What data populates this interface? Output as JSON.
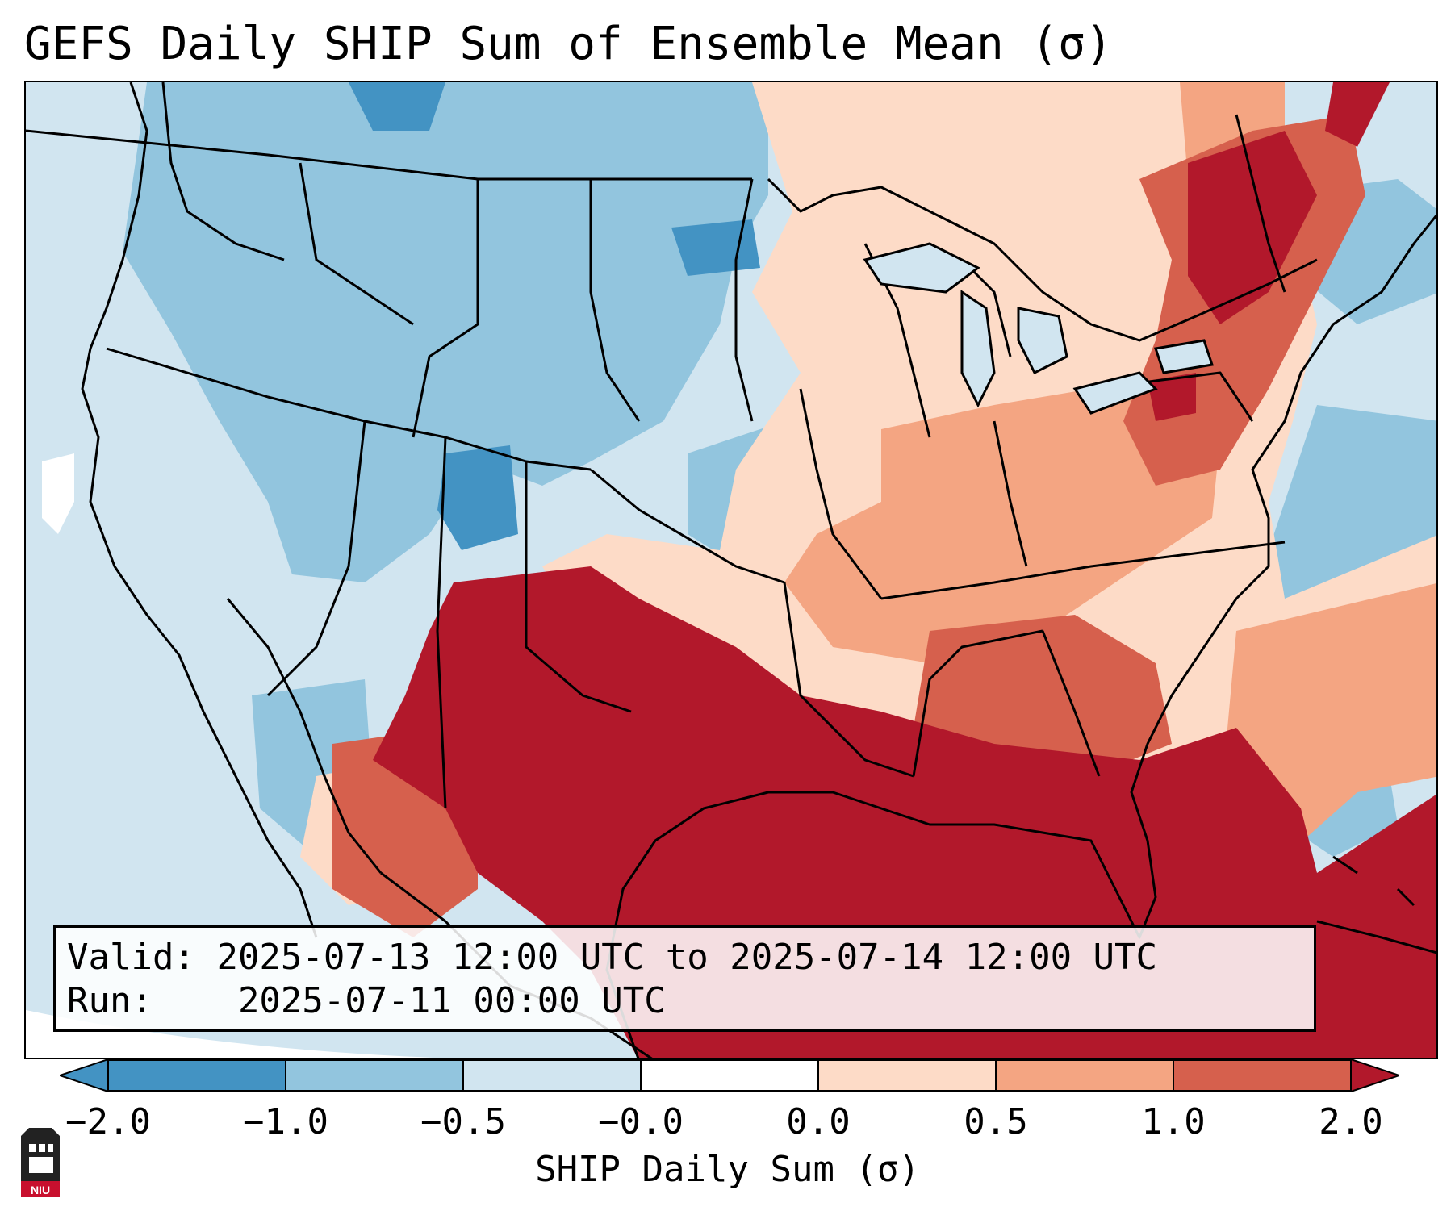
{
  "title": "GEFS Daily SHIP Sum of Ensemble Mean (σ)",
  "info": {
    "valid_label": "Valid:",
    "valid_value": "2025-07-13 12:00 UTC to 2025-07-14 12:00 UTC",
    "run_label": "Run:",
    "run_value": "2025-07-11 00:00 UTC"
  },
  "colorbar": {
    "label": "SHIP Daily Sum (σ)",
    "ticks": [
      "−2.0",
      "−1.0",
      "−0.5",
      "−0.0",
      "0.0",
      "0.5",
      "1.0",
      "2.0"
    ],
    "colors": [
      "#4393c3",
      "#92c5de",
      "#d1e5f0",
      "#ffffff",
      "#fddbc7",
      "#f4a582",
      "#d6604d",
      "#b2182b"
    ],
    "extend": "both"
  },
  "logo": {
    "text": "NIU",
    "color": "#c8102e"
  },
  "colors": {
    "coast": "#000000",
    "ocean": "#d1e5f0",
    "deep_blue": "#4393c3",
    "mid_blue": "#92c5de",
    "light_blue": "#d1e5f0",
    "light_red": "#fddbc7",
    "mid_red": "#f4a582",
    "red": "#d6604d",
    "dark_red": "#b2182b"
  }
}
